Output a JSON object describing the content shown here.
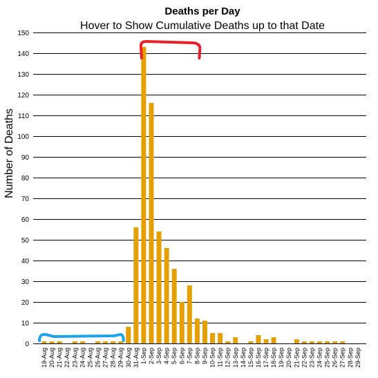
{
  "chart_data": {
    "type": "bar",
    "title": "Deaths per Day",
    "subtitle": "Hover to Show Cumulative Deaths up to that Date",
    "xlabel": "",
    "ylabel": "Number of Deaths",
    "ylim": [
      0,
      150
    ],
    "yticks": [
      0,
      10,
      20,
      30,
      40,
      50,
      60,
      70,
      80,
      90,
      100,
      110,
      120,
      130,
      140,
      150
    ],
    "grid": true,
    "bar_color": "#E69F00",
    "categories": [
      "19-Aug",
      "20-Aug",
      "21-Aug",
      "22-Aug",
      "23-Aug",
      "24-Aug",
      "25-Aug",
      "26-Aug",
      "27-Aug",
      "28-Aug",
      "29-Aug",
      "30-Aug",
      "31-Aug",
      "1-Sep",
      "2-Sep",
      "3-Sep",
      "4-Sep",
      "5-Sep",
      "6-Sep",
      "7-Sep",
      "8-Sep",
      "9-Sep",
      "10-Sep",
      "11-Sep",
      "12-Sep",
      "13-Sep",
      "14-Sep",
      "15-Sep",
      "16-Sep",
      "17-Sep",
      "18-Sep",
      "19-Sep",
      "20-Sep",
      "21-Sep",
      "22-Sep",
      "23-Sep",
      "24-Sep",
      "25-Sep",
      "26-Sep",
      "27-Sep",
      "28-Sep",
      "29-Sep"
    ],
    "values": [
      1,
      1,
      1,
      0,
      1,
      1,
      0,
      1,
      1,
      1,
      1,
      8,
      56,
      143,
      116,
      54,
      46,
      36,
      20,
      28,
      12,
      11,
      5,
      5,
      1,
      3,
      0,
      1,
      4,
      2,
      3,
      0,
      0,
      2,
      1,
      1,
      1,
      1,
      1,
      1,
      0,
      0
    ],
    "annotations": [
      {
        "type": "bracket",
        "color": "#E8202A",
        "position": "above",
        "from": "1-Sep",
        "to": "8-Sep"
      },
      {
        "type": "bracket",
        "color": "#1EA3E8",
        "position": "below",
        "from": "19-Aug",
        "to": "29-Aug"
      }
    ]
  }
}
